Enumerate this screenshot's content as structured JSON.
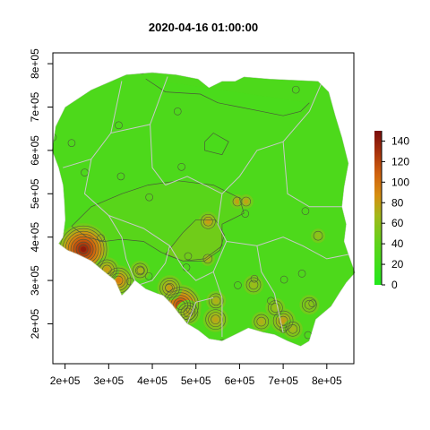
{
  "chart_data": {
    "type": "heatmap",
    "title": "2020-04-16 01:00:00",
    "xlabel": "",
    "ylabel": "",
    "xlim": [
      172000,
      862000
    ],
    "ylim": [
      108000,
      825000
    ],
    "x_ticks": [
      200000,
      300000,
      400000,
      500000,
      600000,
      700000,
      800000
    ],
    "x_tick_labels": [
      "2e+05",
      "3e+05",
      "4e+05",
      "5e+05",
      "6e+05",
      "7e+05",
      "8e+05"
    ],
    "y_ticks": [
      200000,
      300000,
      400000,
      500000,
      600000,
      700000,
      800000
    ],
    "y_tick_labels": [
      "2e+05",
      "3e+05",
      "4e+05",
      "5e+05",
      "6e+05",
      "7e+05",
      "8e+05"
    ],
    "colorbar": {
      "min": 0,
      "max": 150,
      "ticks": [
        0,
        20,
        40,
        60,
        80,
        100,
        120,
        140
      ],
      "tick_labels": [
        "0",
        "20",
        "40",
        "60",
        "80",
        "100",
        "120",
        "140"
      ],
      "low_color": "#22e81c",
      "mid_color": "#a3b81a",
      "high_color": "#7a0c0c"
    },
    "border_color": "#c8c8c8",
    "contour_color": "#4a5a3a",
    "boundary": [
      [
        170000,
        600000
      ],
      [
        178000,
        655000
      ],
      [
        200000,
        700000
      ],
      [
        260000,
        740000
      ],
      [
        340000,
        775000
      ],
      [
        400000,
        780000
      ],
      [
        455000,
        775000
      ],
      [
        505000,
        765000
      ],
      [
        530000,
        745000
      ],
      [
        560000,
        760000
      ],
      [
        590000,
        760000
      ],
      [
        610000,
        770000
      ],
      [
        670000,
        765000
      ],
      [
        780000,
        760000
      ],
      [
        805000,
        735000
      ],
      [
        820000,
        680000
      ],
      [
        835000,
        630000
      ],
      [
        850000,
        570000
      ],
      [
        840000,
        515000
      ],
      [
        835000,
        470000
      ],
      [
        845000,
        430000
      ],
      [
        840000,
        390000
      ],
      [
        850000,
        360000
      ],
      [
        865000,
        318000
      ],
      [
        845000,
        295000
      ],
      [
        830000,
        272000
      ],
      [
        810000,
        240000
      ],
      [
        775000,
        210000
      ],
      [
        760000,
        160000
      ],
      [
        740000,
        148000
      ],
      [
        710000,
        160000
      ],
      [
        680000,
        175000
      ],
      [
        655000,
        180000
      ],
      [
        620000,
        190000
      ],
      [
        600000,
        180000
      ],
      [
        560000,
        160000
      ],
      [
        530000,
        165000
      ],
      [
        505000,
        185000
      ],
      [
        480000,
        200000
      ],
      [
        460000,
        225000
      ],
      [
        445000,
        245000
      ],
      [
        425000,
        265000
      ],
      [
        410000,
        270000
      ],
      [
        385000,
        280000
      ],
      [
        360000,
        300000
      ],
      [
        345000,
        280000
      ],
      [
        330000,
        265000
      ],
      [
        315000,
        300000
      ],
      [
        290000,
        320000
      ],
      [
        260000,
        345000
      ],
      [
        230000,
        360000
      ],
      [
        205000,
        370000
      ],
      [
        185000,
        385000
      ],
      [
        195000,
        400000
      ],
      [
        200000,
        440000
      ],
      [
        198000,
        480000
      ],
      [
        195000,
        520000
      ],
      [
        185000,
        560000
      ]
    ],
    "voivodeship_borders": [
      [
        [
          195000,
          560000
        ],
        [
          260000,
          580000
        ],
        [
          305000,
          640000
        ],
        [
          330000,
          760000
        ]
      ],
      [
        [
          305000,
          640000
        ],
        [
          395000,
          660000
        ],
        [
          435000,
          770000
        ]
      ],
      [
        [
          395000,
          660000
        ],
        [
          400000,
          560000
        ],
        [
          430000,
          520000
        ]
      ],
      [
        [
          260000,
          580000
        ],
        [
          245000,
          500000
        ],
        [
          300000,
          450000
        ],
        [
          330000,
          400000
        ]
      ],
      [
        [
          430000,
          520000
        ],
        [
          480000,
          540000
        ],
        [
          520000,
          520000
        ],
        [
          560000,
          500000
        ],
        [
          600000,
          540000
        ],
        [
          640000,
          600000
        ],
        [
          700000,
          620000
        ]
      ],
      [
        [
          560000,
          500000
        ],
        [
          550000,
          430000
        ],
        [
          570000,
          390000
        ]
      ],
      [
        [
          570000,
          390000
        ],
        [
          640000,
          380000
        ],
        [
          700000,
          400000
        ],
        [
          745000,
          380000
        ],
        [
          800000,
          350000
        ],
        [
          850000,
          360000
        ]
      ],
      [
        [
          700000,
          620000
        ],
        [
          760000,
          690000
        ],
        [
          790000,
          760000
        ]
      ],
      [
        [
          700000,
          620000
        ],
        [
          710000,
          500000
        ],
        [
          760000,
          470000
        ],
        [
          840000,
          470000
        ]
      ],
      [
        [
          300000,
          450000
        ],
        [
          380000,
          420000
        ],
        [
          440000,
          380000
        ],
        [
          470000,
          330000
        ]
      ],
      [
        [
          470000,
          330000
        ],
        [
          500000,
          300000
        ],
        [
          540000,
          320000
        ],
        [
          570000,
          390000
        ]
      ],
      [
        [
          440000,
          380000
        ],
        [
          430000,
          340000
        ],
        [
          400000,
          300000
        ],
        [
          370000,
          290000
        ]
      ],
      [
        [
          640000,
          380000
        ],
        [
          650000,
          320000
        ],
        [
          680000,
          270000
        ],
        [
          700000,
          180000
        ]
      ],
      [
        [
          540000,
          320000
        ],
        [
          560000,
          260000
        ],
        [
          560000,
          170000
        ]
      ],
      [
        [
          480000,
          200000
        ],
        [
          500000,
          250000
        ],
        [
          540000,
          260000
        ]
      ],
      [
        [
          330000,
          400000
        ],
        [
          340000,
          350000
        ],
        [
          360000,
          300000
        ]
      ]
    ],
    "hotspots": [
      {
        "x": 242000,
        "y": 372000,
        "value": 150,
        "rings": 8
      },
      {
        "x": 465000,
        "y": 243000,
        "value": 130,
        "rings": 6
      },
      {
        "x": 322000,
        "y": 300000,
        "value": 95,
        "rings": 4
      },
      {
        "x": 296000,
        "y": 325000,
        "value": 80,
        "rings": 3
      },
      {
        "x": 440000,
        "y": 283000,
        "value": 80,
        "rings": 3
      },
      {
        "x": 482000,
        "y": 226000,
        "value": 70,
        "rings": 3
      },
      {
        "x": 545000,
        "y": 210000,
        "value": 75,
        "rings": 3
      },
      {
        "x": 700000,
        "y": 207000,
        "value": 78,
        "rings": 3
      },
      {
        "x": 722000,
        "y": 188000,
        "value": 65,
        "rings": 2
      },
      {
        "x": 528000,
        "y": 436000,
        "value": 82,
        "rings": 2
      },
      {
        "x": 546000,
        "y": 253000,
        "value": 70,
        "rings": 2
      },
      {
        "x": 650000,
        "y": 205000,
        "value": 70,
        "rings": 2
      },
      {
        "x": 632000,
        "y": 290000,
        "value": 62,
        "rings": 2
      },
      {
        "x": 682000,
        "y": 237000,
        "value": 60,
        "rings": 2
      },
      {
        "x": 760000,
        "y": 244000,
        "value": 55,
        "rings": 2
      },
      {
        "x": 780000,
        "y": 403000,
        "value": 60,
        "rings": 1
      },
      {
        "x": 595000,
        "y": 482000,
        "value": 85,
        "rings": 1
      },
      {
        "x": 615000,
        "y": 482000,
        "value": 82,
        "rings": 1
      },
      {
        "x": 527000,
        "y": 350000,
        "value": 72,
        "rings": 1
      },
      {
        "x": 372000,
        "y": 323000,
        "value": 68,
        "rings": 2
      }
    ],
    "local_minima": [
      {
        "x": 172000,
        "y": 630000
      },
      {
        "x": 215000,
        "y": 617000
      },
      {
        "x": 245000,
        "y": 549000
      },
      {
        "x": 282000,
        "y": 398000
      },
      {
        "x": 323000,
        "y": 658000
      },
      {
        "x": 328000,
        "y": 540000
      },
      {
        "x": 392000,
        "y": 310000
      },
      {
        "x": 349000,
        "y": 298000
      },
      {
        "x": 373000,
        "y": 323000
      },
      {
        "x": 376000,
        "y": 785000
      },
      {
        "x": 393000,
        "y": 492000
      },
      {
        "x": 423000,
        "y": 788000
      },
      {
        "x": 438000,
        "y": 283000
      },
      {
        "x": 478000,
        "y": 330000
      },
      {
        "x": 482000,
        "y": 356000
      },
      {
        "x": 486000,
        "y": 233000
      },
      {
        "x": 458000,
        "y": 690000
      },
      {
        "x": 467000,
        "y": 562000
      },
      {
        "x": 596000,
        "y": 289000
      },
      {
        "x": 613000,
        "y": 454000
      },
      {
        "x": 672000,
        "y": 253000
      },
      {
        "x": 701000,
        "y": 188000
      },
      {
        "x": 729000,
        "y": 740000
      },
      {
        "x": 751000,
        "y": 460000
      },
      {
        "x": 767000,
        "y": 247000
      },
      {
        "x": 743000,
        "y": 316000
      },
      {
        "x": 702000,
        "y": 302000
      },
      {
        "x": 757000,
        "y": 174000
      },
      {
        "x": 562000,
        "y": 156000
      },
      {
        "x": 634000,
        "y": 304000
      }
    ],
    "broad_contours": [
      {
        "level": 40,
        "points": [
          [
            215000,
            425000
          ],
          [
            260000,
            470000
          ],
          [
            330000,
            500000
          ],
          [
            390000,
            520000
          ],
          [
            460000,
            530000
          ],
          [
            540000,
            520000
          ],
          [
            600000,
            490000
          ],
          [
            610000,
            455000
          ],
          [
            560000,
            430000
          ],
          [
            560000,
            380000
          ],
          [
            520000,
            350000
          ],
          [
            470000,
            345000
          ],
          [
            420000,
            365000
          ],
          [
            380000,
            390000
          ],
          [
            330000,
            395000
          ],
          [
            290000,
            390000
          ],
          [
            250000,
            400000
          ],
          [
            215000,
            425000
          ]
        ]
      },
      {
        "level": 50,
        "points": [
          [
            430000,
            360000
          ],
          [
            470000,
            410000
          ],
          [
            500000,
            440000
          ],
          [
            545000,
            440000
          ],
          [
            565000,
            405000
          ],
          [
            555000,
            370000
          ],
          [
            520000,
            345000
          ],
          [
            470000,
            345000
          ],
          [
            430000,
            360000
          ]
        ]
      },
      {
        "level": 30,
        "points": [
          [
            385000,
            765000
          ],
          [
            430000,
            735000
          ],
          [
            510000,
            730000
          ],
          [
            550000,
            710000
          ],
          [
            600000,
            700000
          ],
          [
            650000,
            690000
          ],
          [
            700000,
            680000
          ],
          [
            740000,
            690000
          ],
          [
            760000,
            710000
          ]
        ]
      },
      {
        "level": 30,
        "points": [
          [
            520000,
            620000
          ],
          [
            520000,
            600000
          ],
          [
            560000,
            590000
          ],
          [
            575000,
            620000
          ],
          [
            540000,
            640000
          ],
          [
            520000,
            620000
          ]
        ]
      }
    ]
  }
}
